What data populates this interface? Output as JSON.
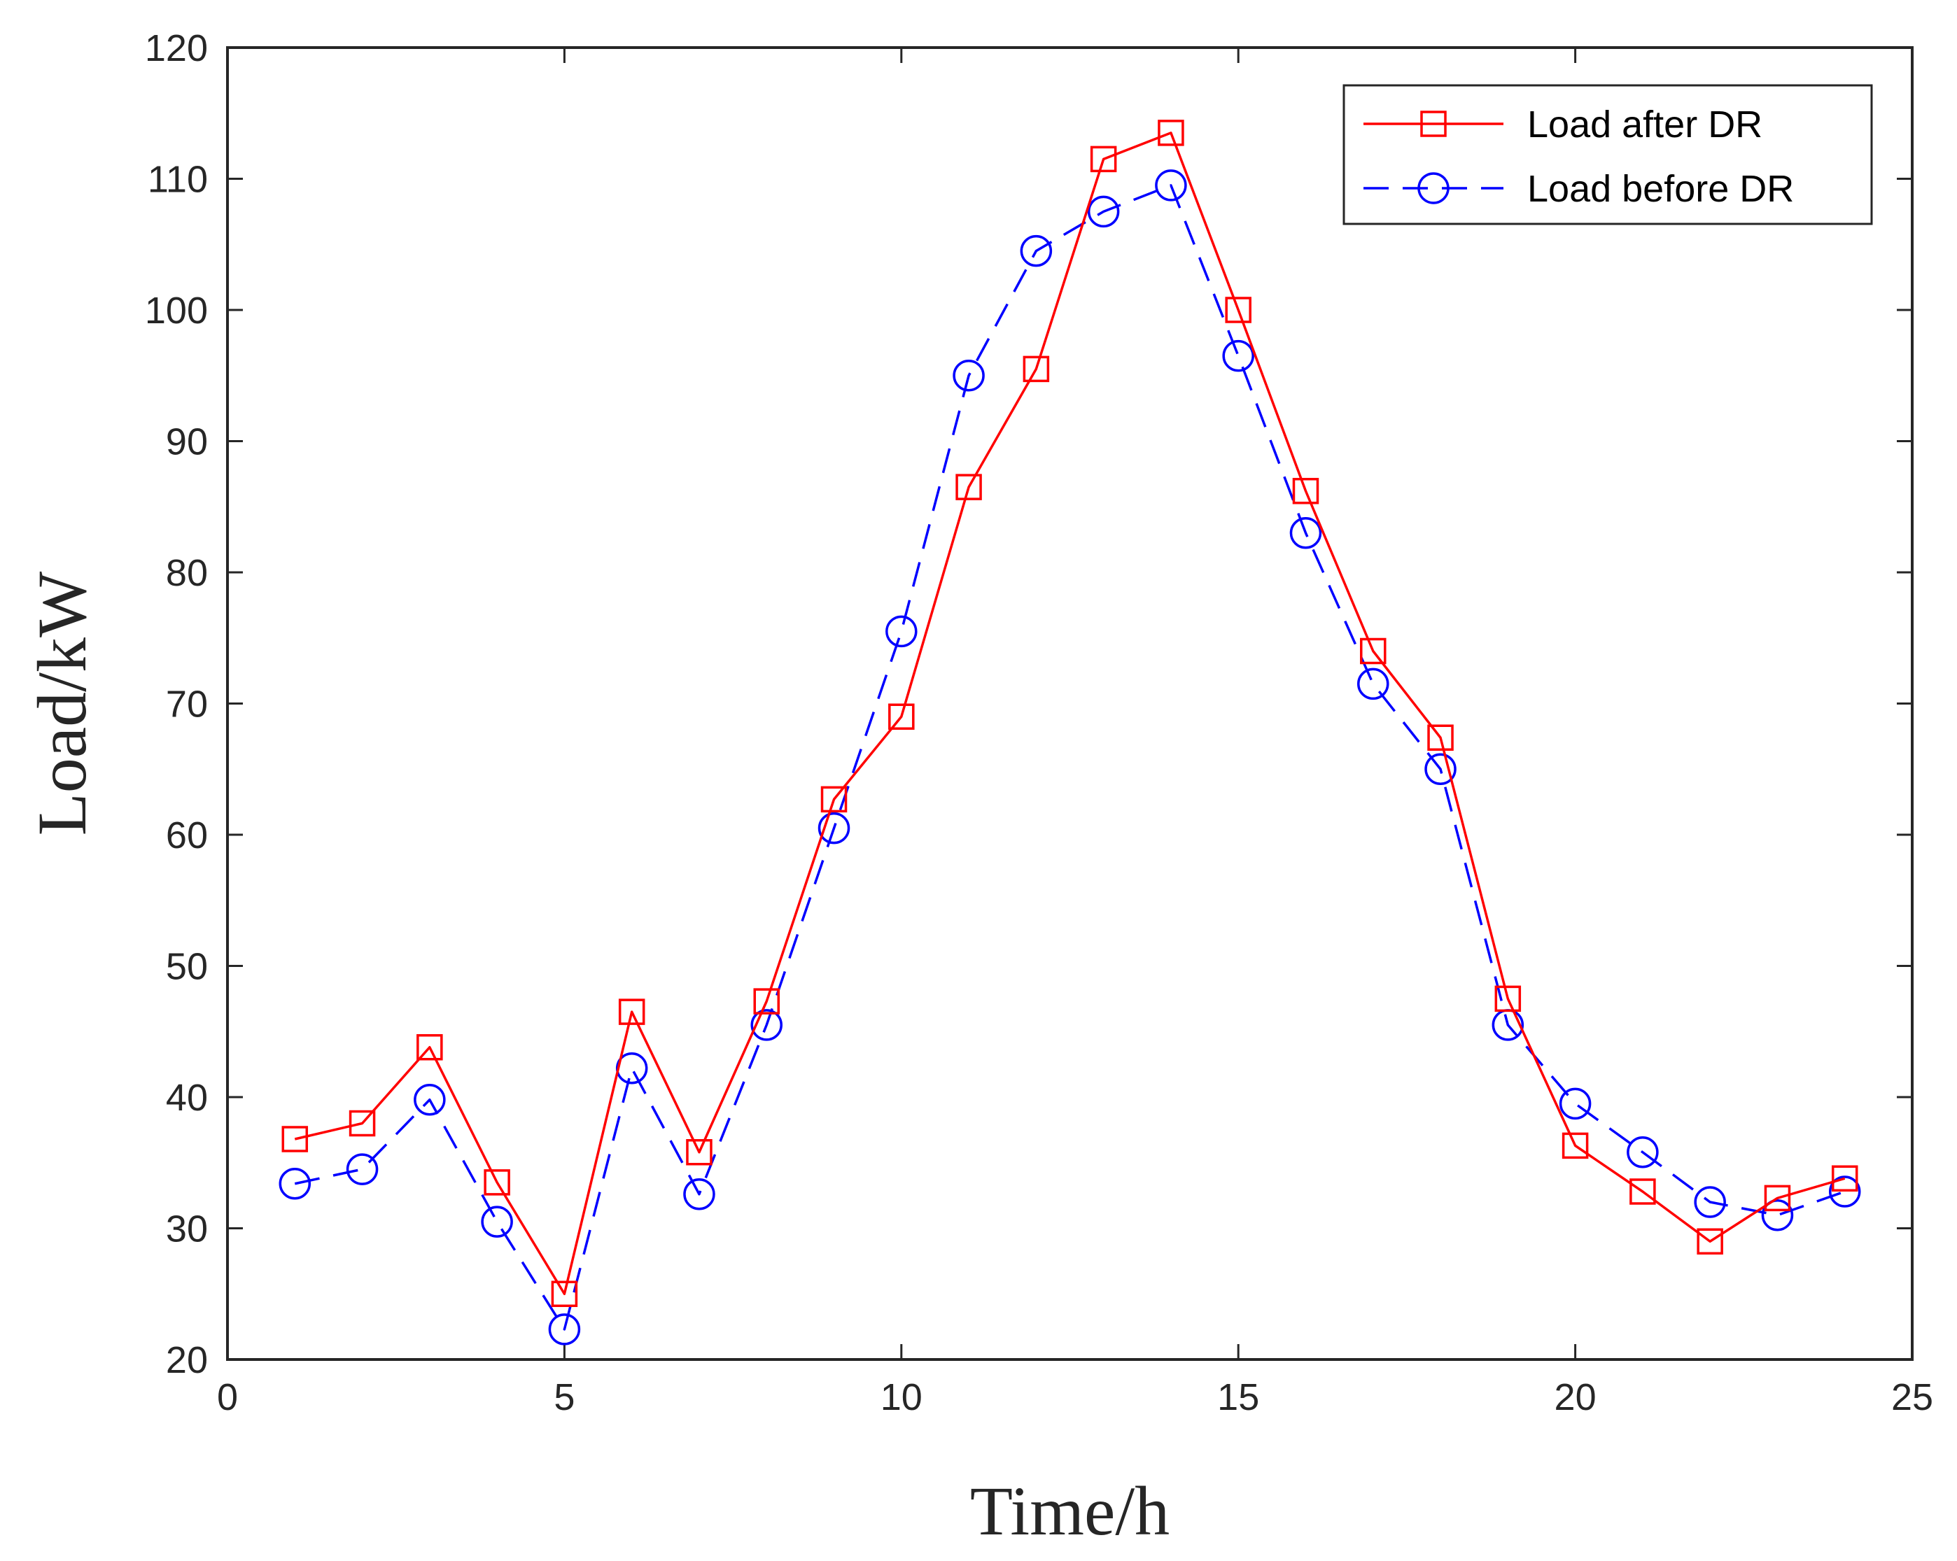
{
  "chart_data": {
    "type": "line",
    "title": "",
    "xlabel": "Time/h",
    "ylabel": "Load/kW",
    "xlim": [
      0,
      25
    ],
    "ylim": [
      20,
      120
    ],
    "xticks": [
      0,
      5,
      10,
      15,
      20,
      25
    ],
    "yticks": [
      20,
      30,
      40,
      50,
      60,
      70,
      80,
      90,
      100,
      110,
      120
    ],
    "grid": false,
    "legend_position": "top-right",
    "x": [
      1,
      2,
      3,
      4,
      5,
      6,
      7,
      8,
      9,
      10,
      11,
      12,
      13,
      14,
      15,
      16,
      17,
      18,
      19,
      20,
      21,
      22,
      23,
      24
    ],
    "series": [
      {
        "name": "Load after DR",
        "color": "#ff0000",
        "line_style": "solid",
        "marker": "square",
        "values": [
          36.8,
          38.0,
          43.8,
          33.5,
          25.0,
          46.5,
          35.8,
          47.3,
          62.7,
          69.0,
          86.5,
          95.5,
          111.5,
          113.5,
          100.0,
          86.2,
          74.0,
          67.4,
          47.5,
          36.3,
          32.8,
          29.0,
          32.3,
          33.8
        ]
      },
      {
        "name": "Load before DR",
        "color": "#0000ff",
        "line_style": "dashed",
        "marker": "circle",
        "values": [
          33.4,
          34.5,
          39.8,
          30.5,
          22.3,
          42.2,
          32.6,
          45.5,
          60.5,
          75.5,
          95.0,
          104.5,
          107.5,
          109.5,
          96.5,
          83.0,
          71.5,
          65.0,
          45.5,
          39.5,
          35.8,
          32.0,
          31.0,
          32.8
        ]
      }
    ]
  }
}
